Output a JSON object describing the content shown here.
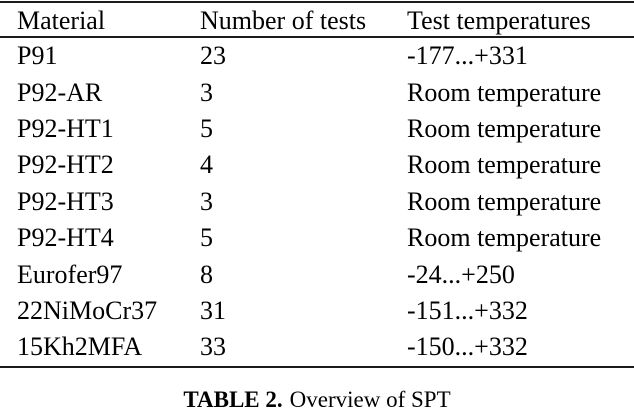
{
  "table": {
    "columns": [
      "Material",
      "Number of tests",
      "Test temperatures"
    ],
    "rows": [
      [
        "P91",
        "23",
        "-177...+331"
      ],
      [
        "P92-AR",
        "3",
        "Room temperature"
      ],
      [
        "P92-HT1",
        "5",
        "Room temperature"
      ],
      [
        "P92-HT2",
        "4",
        "Room temperature"
      ],
      [
        "P92-HT3",
        "3",
        "Room temperature"
      ],
      [
        "P92-HT4",
        "5",
        "Room temperature"
      ],
      [
        "Eurofer97",
        "8",
        "-24...+250"
      ],
      [
        "22NiMoCr37",
        "31",
        "-151...+332"
      ],
      [
        "15Kh2MFA",
        "33",
        "-150...+332"
      ]
    ]
  },
  "chart_data": {
    "type": "table",
    "title": "TABLE 2. Overview of SPT",
    "columns": [
      "Material",
      "Number of tests",
      "Test temperatures"
    ],
    "rows": [
      {
        "material": "P91",
        "number_of_tests": 23,
        "test_temperatures": "-177...+331"
      },
      {
        "material": "P92-AR",
        "number_of_tests": 3,
        "test_temperatures": "Room temperature"
      },
      {
        "material": "P92-HT1",
        "number_of_tests": 5,
        "test_temperatures": "Room temperature"
      },
      {
        "material": "P92-HT2",
        "number_of_tests": 4,
        "test_temperatures": "Room temperature"
      },
      {
        "material": "P92-HT3",
        "number_of_tests": 3,
        "test_temperatures": "Room temperature"
      },
      {
        "material": "P92-HT4",
        "number_of_tests": 5,
        "test_temperatures": "Room temperature"
      },
      {
        "material": "Eurofer97",
        "number_of_tests": 8,
        "test_temperatures": "-24...+250"
      },
      {
        "material": "22NiMoCr37",
        "number_of_tests": 31,
        "test_temperatures": "-151...+332"
      },
      {
        "material": "15Kh2MFA",
        "number_of_tests": 33,
        "test_temperatures": "-150...+332"
      }
    ]
  },
  "caption": {
    "label": "TABLE 2.",
    "text": "Overview of SPT"
  },
  "colors": {
    "background": "#ffffff",
    "text": "#000000",
    "rule": "#1b1b1b"
  }
}
